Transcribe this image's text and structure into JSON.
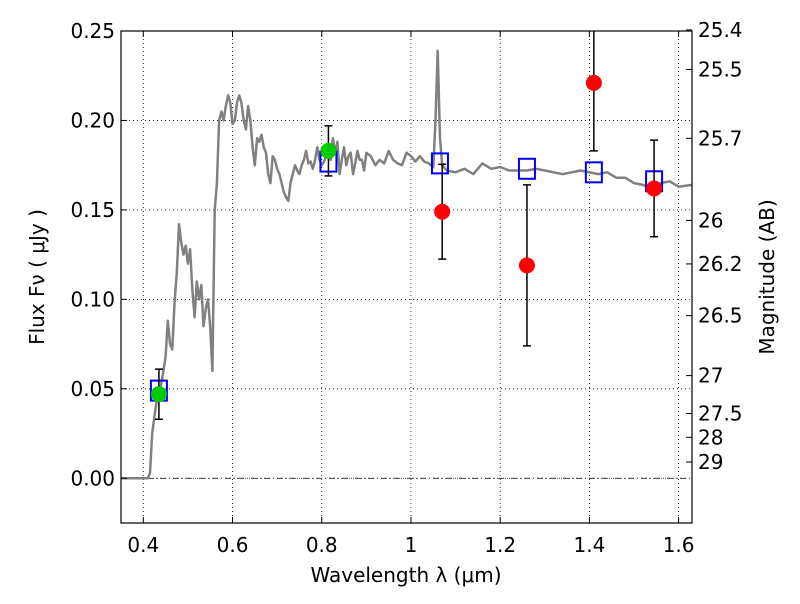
{
  "chart_data": {
    "type": "scatter",
    "title": "",
    "xlabel": "Wavelength  λ (μm)",
    "ylabel": "Flux  Fν  ( μJy )",
    "ylabel_right": "Magnitude (AB)",
    "xlim": [
      0.35,
      1.63
    ],
    "ylim": [
      -0.025,
      0.25
    ],
    "grid": true,
    "x_ticks": [
      0.4,
      0.6,
      0.8,
      1.0,
      1.2,
      1.4,
      1.6
    ],
    "x_tick_labels": [
      "0.4",
      "0.6",
      "0.8",
      "1",
      "1.2",
      "1.4",
      "1.6"
    ],
    "y_ticks": [
      0.0,
      0.05,
      0.1,
      0.15,
      0.2,
      0.25
    ],
    "y_tick_labels": [
      "0.00",
      "0.05",
      "0.10",
      "0.15",
      "0.20",
      "0.25"
    ],
    "right_ticks": [
      {
        "label": "25.4",
        "flux": 0.2506
      },
      {
        "label": "25.5",
        "flux": 0.2285
      },
      {
        "label": "25.7",
        "flux": 0.19
      },
      {
        "label": "26",
        "flux": 0.1441
      },
      {
        "label": "26.2",
        "flux": 0.1198
      },
      {
        "label": "26.5",
        "flux": 0.0909
      },
      {
        "label": "27",
        "flux": 0.0574
      },
      {
        "label": "27.5",
        "flux": 0.0362
      },
      {
        "label": "28",
        "flux": 0.0229
      },
      {
        "label": "29",
        "flux": 0.0091
      }
    ],
    "series": [
      {
        "kind": "line",
        "color": "#808080",
        "x": [
          0.35,
          0.41,
          0.415,
          0.42,
          0.425,
          0.43,
          0.435,
          0.44,
          0.445,
          0.45,
          0.455,
          0.46,
          0.465,
          0.47,
          0.475,
          0.48,
          0.485,
          0.49,
          0.495,
          0.5,
          0.505,
          0.51,
          0.515,
          0.52,
          0.525,
          0.53,
          0.535,
          0.54,
          0.545,
          0.55,
          0.555,
          0.56,
          0.565,
          0.57,
          0.575,
          0.58,
          0.585,
          0.59,
          0.595,
          0.6,
          0.605,
          0.61,
          0.615,
          0.62,
          0.625,
          0.63,
          0.635,
          0.64,
          0.645,
          0.65,
          0.655,
          0.66,
          0.665,
          0.67,
          0.675,
          0.68,
          0.685,
          0.69,
          0.695,
          0.7,
          0.705,
          0.71,
          0.715,
          0.72,
          0.725,
          0.73,
          0.735,
          0.74,
          0.745,
          0.75,
          0.755,
          0.76,
          0.765,
          0.77,
          0.775,
          0.78,
          0.785,
          0.79,
          0.795,
          0.8,
          0.805,
          0.81,
          0.815,
          0.82,
          0.825,
          0.83,
          0.835,
          0.84,
          0.845,
          0.85,
          0.855,
          0.86,
          0.865,
          0.87,
          0.875,
          0.88,
          0.885,
          0.89,
          0.895,
          0.9,
          0.91,
          0.92,
          0.93,
          0.94,
          0.95,
          0.96,
          0.97,
          0.98,
          0.99,
          1.0,
          1.01,
          1.02,
          1.03,
          1.04,
          1.05,
          1.055,
          1.06,
          1.065,
          1.07,
          1.08,
          1.1,
          1.12,
          1.14,
          1.16,
          1.18,
          1.2,
          1.22,
          1.24,
          1.26,
          1.28,
          1.3,
          1.32,
          1.34,
          1.36,
          1.38,
          1.4,
          1.42,
          1.44,
          1.46,
          1.48,
          1.5,
          1.52,
          1.54,
          1.56,
          1.58,
          1.6,
          1.63
        ],
        "y": [
          0.0,
          0.0,
          0.003,
          0.025,
          0.035,
          0.043,
          0.049,
          0.052,
          0.06,
          0.068,
          0.088,
          0.075,
          0.072,
          0.098,
          0.115,
          0.142,
          0.132,
          0.125,
          0.13,
          0.12,
          0.128,
          0.105,
          0.09,
          0.11,
          0.1,
          0.108,
          0.085,
          0.095,
          0.1,
          0.085,
          0.06,
          0.15,
          0.165,
          0.2,
          0.205,
          0.2,
          0.208,
          0.214,
          0.21,
          0.198,
          0.2,
          0.21,
          0.214,
          0.21,
          0.2,
          0.195,
          0.208,
          0.2,
          0.185,
          0.175,
          0.19,
          0.188,
          0.192,
          0.185,
          0.182,
          0.17,
          0.165,
          0.18,
          0.178,
          0.173,
          0.17,
          0.165,
          0.16,
          0.157,
          0.155,
          0.165,
          0.17,
          0.175,
          0.172,
          0.17,
          0.175,
          0.178,
          0.183,
          0.176,
          0.177,
          0.173,
          0.178,
          0.185,
          0.178,
          0.175,
          0.177,
          0.18,
          0.185,
          0.178,
          0.19,
          0.182,
          0.188,
          0.17,
          0.178,
          0.185,
          0.175,
          0.18,
          0.182,
          0.17,
          0.176,
          0.183,
          0.178,
          0.178,
          0.172,
          0.182,
          0.18,
          0.175,
          0.178,
          0.176,
          0.183,
          0.178,
          0.176,
          0.175,
          0.182,
          0.18,
          0.177,
          0.18,
          0.177,
          0.176,
          0.174,
          0.2,
          0.239,
          0.19,
          0.175,
          0.172,
          0.171,
          0.173,
          0.17,
          0.176,
          0.173,
          0.174,
          0.172,
          0.172,
          0.172,
          0.173,
          0.172,
          0.171,
          0.17,
          0.171,
          0.172,
          0.171,
          0.17,
          0.171,
          0.168,
          0.168,
          0.165,
          0.164,
          0.162,
          0.165,
          0.166,
          0.163,
          0.164
        ]
      },
      {
        "kind": "square",
        "color": "#0000ff",
        "x": [
          0.435,
          0.815,
          1.065,
          1.26,
          1.41,
          1.545
        ],
        "y": [
          0.049,
          0.177,
          0.176,
          0.173,
          0.171,
          0.166
        ]
      },
      {
        "kind": "circle",
        "color": "#00cc00",
        "x": [
          0.435,
          0.815
        ],
        "y": [
          0.047,
          0.183
        ],
        "yerr": [
          0.014,
          0.014
        ]
      },
      {
        "kind": "circle",
        "color": "#ff0000",
        "x": [
          1.07,
          1.26,
          1.41,
          1.545
        ],
        "y": [
          0.149,
          0.119,
          0.221,
          0.162
        ],
        "yerr": [
          0.0265,
          0.045,
          0.038,
          0.027
        ]
      }
    ]
  }
}
